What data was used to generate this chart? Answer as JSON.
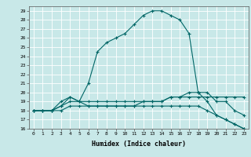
{
  "xlabel": "Humidex (Indice chaleur)",
  "ylabel": "",
  "background_color": "#c8e8e8",
  "grid_color": "#ffffff",
  "line_color": "#006666",
  "xlim": [
    -0.5,
    23.5
  ],
  "ylim": [
    16,
    29.5
  ],
  "yticks": [
    16,
    17,
    18,
    19,
    20,
    21,
    22,
    23,
    24,
    25,
    26,
    27,
    28,
    29
  ],
  "xticks": [
    0,
    1,
    2,
    3,
    4,
    5,
    6,
    7,
    8,
    9,
    10,
    11,
    12,
    13,
    14,
    15,
    16,
    17,
    18,
    19,
    20,
    21,
    22,
    23
  ],
  "series": [
    [
      18.0,
      18.0,
      18.0,
      19.0,
      19.5,
      19.0,
      21.0,
      24.5,
      25.5,
      26.0,
      26.5,
      27.5,
      28.5,
      29.0,
      29.0,
      28.5,
      28.0,
      26.5,
      20.0,
      19.0,
      17.5,
      17.0,
      16.5,
      16.0
    ],
    [
      18.0,
      18.0,
      18.0,
      18.0,
      18.5,
      18.5,
      18.5,
      18.5,
      18.5,
      18.5,
      18.5,
      18.5,
      19.0,
      19.0,
      19.0,
      19.5,
      19.5,
      19.5,
      19.5,
      19.5,
      19.5,
      19.5,
      19.5,
      19.5
    ],
    [
      18.0,
      18.0,
      18.0,
      18.5,
      19.0,
      19.0,
      18.5,
      18.5,
      18.5,
      18.5,
      18.5,
      18.5,
      18.5,
      18.5,
      18.5,
      18.5,
      18.5,
      18.5,
      18.5,
      18.0,
      17.5,
      17.0,
      16.5,
      16.0
    ],
    [
      18.0,
      18.0,
      18.0,
      18.5,
      19.5,
      19.0,
      19.0,
      19.0,
      19.0,
      19.0,
      19.0,
      19.0,
      19.0,
      19.0,
      19.0,
      19.5,
      19.5,
      20.0,
      20.0,
      20.0,
      19.0,
      19.0,
      18.0,
      17.5
    ]
  ]
}
